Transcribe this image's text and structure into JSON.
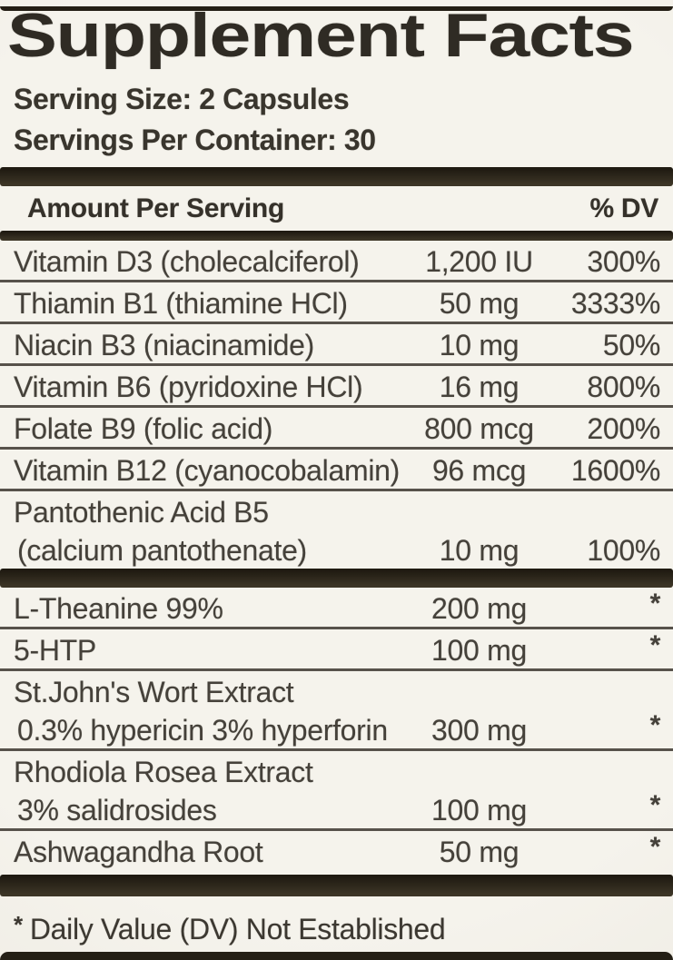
{
  "colors": {
    "background": "#f3f1ea",
    "bar": "#282217",
    "separator": "#57524b",
    "text": "#433f38"
  },
  "label": {
    "title": "Supplement Facts",
    "serving_size": "Serving Size: 2 Capsules",
    "servings_per_container": "Servings Per Container: 30",
    "columns": {
      "amount_header": "Amount Per Serving",
      "dv_header": "% DV"
    },
    "vitamins": [
      {
        "name": "Vitamin D3 (cholecalciferol)",
        "amount": "1,200 IU",
        "dv": "300%"
      },
      {
        "name": "Thiamin B1 (thiamine HCl)",
        "amount": "50 mg",
        "dv": "3333%"
      },
      {
        "name": "Niacin B3 (niacinamide)",
        "amount": "10 mg",
        "dv": "50%"
      },
      {
        "name": "Vitamin B6 (pyridoxine HCl)",
        "amount": "16 mg",
        "dv": "800%"
      },
      {
        "name": "Folate B9 (folic acid)",
        "amount": "800 mcg",
        "dv": "200%"
      },
      {
        "name": "Vitamin B12 (cyanocobalamin)",
        "amount": "96 mcg",
        "dv": "1600%"
      },
      {
        "name": "Pantothenic Acid B5",
        "sub": "(calcium pantothenate)",
        "amount": "10 mg",
        "dv": "100%"
      }
    ],
    "botanicals": [
      {
        "name": "L-Theanine 99%",
        "amount": "200 mg",
        "dv": "*"
      },
      {
        "name": "5-HTP",
        "amount": "100 mg",
        "dv": "*"
      },
      {
        "name": "St.John's Wort Extract",
        "sub": "0.3% hypericin 3% hyperforin",
        "amount": "300 mg",
        "dv": "*"
      },
      {
        "name": "Rhodiola Rosea Extract",
        "sub": "3% salidrosides",
        "amount": "100 mg",
        "dv": "*"
      },
      {
        "name": "Ashwagandha Root",
        "amount": "50 mg",
        "dv": "*"
      }
    ],
    "footnote": {
      "marker": "*",
      "text": "Daily Value (DV) Not Established"
    }
  }
}
